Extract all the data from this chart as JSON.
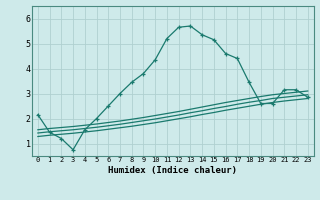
{
  "title": "",
  "xlabel": "Humidex (Indice chaleur)",
  "ylabel": "",
  "background_color": "#ceeaea",
  "grid_color": "#b0d0d0",
  "line_color": "#1a7a6e",
  "xlim": [
    -0.5,
    23.5
  ],
  "ylim": [
    0.5,
    6.5
  ],
  "xticks": [
    0,
    1,
    2,
    3,
    4,
    5,
    6,
    7,
    8,
    9,
    10,
    11,
    12,
    13,
    14,
    15,
    16,
    17,
    18,
    19,
    20,
    21,
    22,
    23
  ],
  "yticks": [
    1,
    2,
    3,
    4,
    5,
    6
  ],
  "curve1_x": [
    0,
    1,
    2,
    3,
    4,
    5,
    6,
    7,
    8,
    9,
    10,
    11,
    12,
    13,
    14,
    15,
    16,
    17,
    18,
    19,
    20,
    21,
    22,
    23
  ],
  "curve1_y": [
    2.15,
    1.45,
    1.2,
    0.75,
    1.55,
    2.0,
    2.5,
    3.0,
    3.45,
    3.8,
    4.35,
    5.2,
    5.65,
    5.7,
    5.35,
    5.15,
    4.6,
    4.4,
    3.45,
    2.6,
    2.6,
    3.15,
    3.15,
    2.85
  ],
  "curve2_x": [
    0,
    1,
    2,
    3,
    4,
    5,
    6,
    7,
    8,
    9,
    10,
    11,
    12,
    13,
    14,
    15,
    16,
    17,
    18,
    19,
    20,
    21,
    22,
    23
  ],
  "curve2_y": [
    1.55,
    1.6,
    1.64,
    1.68,
    1.73,
    1.78,
    1.84,
    1.9,
    1.97,
    2.04,
    2.12,
    2.2,
    2.28,
    2.37,
    2.46,
    2.55,
    2.64,
    2.72,
    2.8,
    2.88,
    2.95,
    3.0,
    3.05,
    3.1
  ],
  "curve3_x": [
    0,
    1,
    2,
    3,
    4,
    5,
    6,
    7,
    8,
    9,
    10,
    11,
    12,
    13,
    14,
    15,
    16,
    17,
    18,
    19,
    20,
    21,
    22,
    23
  ],
  "curve3_y": [
    1.42,
    1.47,
    1.51,
    1.55,
    1.6,
    1.65,
    1.71,
    1.77,
    1.84,
    1.91,
    1.98,
    2.06,
    2.14,
    2.23,
    2.31,
    2.4,
    2.48,
    2.57,
    2.65,
    2.72,
    2.8,
    2.85,
    2.9,
    2.95
  ],
  "curve4_x": [
    0,
    1,
    2,
    3,
    4,
    5,
    6,
    7,
    8,
    9,
    10,
    11,
    12,
    13,
    14,
    15,
    16,
    17,
    18,
    19,
    20,
    21,
    22,
    23
  ],
  "curve4_y": [
    1.28,
    1.33,
    1.37,
    1.41,
    1.46,
    1.51,
    1.57,
    1.63,
    1.69,
    1.76,
    1.83,
    1.91,
    1.99,
    2.07,
    2.16,
    2.24,
    2.33,
    2.41,
    2.49,
    2.57,
    2.64,
    2.7,
    2.75,
    2.8
  ]
}
